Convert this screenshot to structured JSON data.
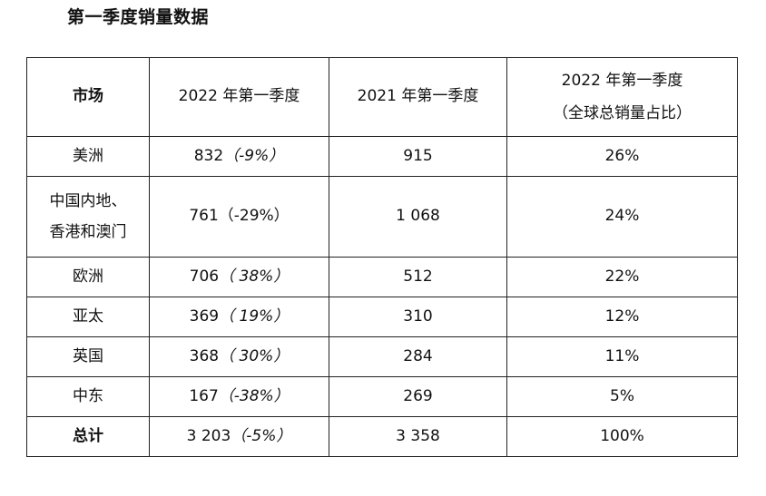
{
  "title": "第一季度销量数据",
  "headers": {
    "market": "市场",
    "q1_2022": "2022 年第一季度",
    "q1_2021": "2021 年第一季度",
    "share_line1": "2022 年第一季度",
    "share_line2": "（全球总销量占比）"
  },
  "rows": [
    {
      "market": "美洲",
      "v2022": "832",
      "chg": "（-9%）",
      "v2021": "915",
      "share": "26%"
    },
    {
      "market_line1": "中国内地、",
      "market_line2": "香港和澳门",
      "v2022": "761",
      "chg": "（-29%）",
      "v2021": "1 068",
      "share": "24%"
    },
    {
      "market": "欧洲",
      "v2022": "706",
      "chg": "（ 38%）",
      "v2021": "512",
      "share": "22%"
    },
    {
      "market": "亚太",
      "v2022": "369",
      "chg": "（ 19%）",
      "v2021": "310",
      "share": "12%"
    },
    {
      "market": "英国",
      "v2022": "368",
      "chg": "（ 30%）",
      "v2021": "284",
      "share": "11%"
    },
    {
      "market": "中东",
      "v2022": "167",
      "chg": "（-38%）",
      "v2021": "269",
      "share": "5%"
    },
    {
      "market": "总计",
      "v2022": "3 203",
      "chg": "（-5%）",
      "v2021": "3 358",
      "share": "100%"
    }
  ]
}
